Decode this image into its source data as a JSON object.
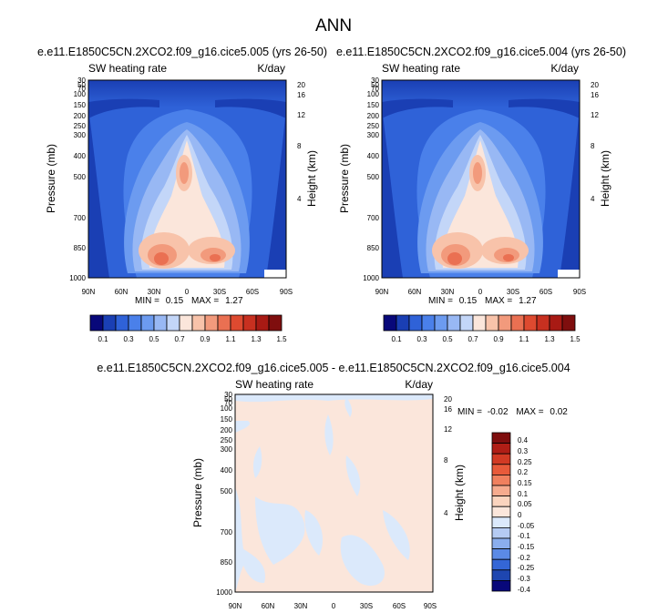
{
  "page_title": "ANN",
  "chart_data": [
    {
      "type": "heatmap",
      "panel": "left",
      "title": "e.e11.E1850C5CN.2XCO2.f09_g16.cice5.005 (yrs 26-50)",
      "variable": "SW heating rate",
      "units": "K/day",
      "xlabel": "",
      "ylabel": "Pressure (mb)",
      "ylabel_right": "Height (km)",
      "x_ticks": [
        "90N",
        "60N",
        "30N",
        "0",
        "30S",
        "60S",
        "90S"
      ],
      "y_ticks": [
        "30",
        "50",
        "70",
        "100",
        "150",
        "200",
        "250",
        "300",
        "400",
        "500",
        "700",
        "850",
        "1000"
      ],
      "y_ticks_right": [
        "20",
        "16",
        "12",
        "8",
        "4"
      ],
      "ylim": [
        1000,
        30
      ],
      "min_label": "MIN =",
      "min_value": "0.15",
      "max_label": "MAX =",
      "max_value": "1.27",
      "colorbar_labels": [
        "0.1",
        "0.3",
        "0.5",
        "0.7",
        "0.9",
        "1.1",
        "1.3",
        "1.5"
      ]
    },
    {
      "type": "heatmap",
      "panel": "right",
      "title": "e.e11.E1850C5CN.2XCO2.f09_g16.cice5.004 (yrs 26-50)",
      "variable": "SW heating rate",
      "units": "K/day",
      "xlabel": "",
      "ylabel": "Pressure (mb)",
      "ylabel_right": "Height (km)",
      "x_ticks": [
        "90N",
        "60N",
        "30N",
        "0",
        "30S",
        "60S",
        "90S"
      ],
      "y_ticks": [
        "30",
        "50",
        "70",
        "100",
        "150",
        "200",
        "250",
        "300",
        "400",
        "500",
        "700",
        "850",
        "1000"
      ],
      "y_ticks_right": [
        "20",
        "16",
        "12",
        "8",
        "4"
      ],
      "ylim": [
        1000,
        30
      ],
      "min_label": "MIN =",
      "min_value": "0.15",
      "max_label": "MAX =",
      "max_value": "1.27",
      "colorbar_labels": [
        "0.1",
        "0.3",
        "0.5",
        "0.7",
        "0.9",
        "1.1",
        "1.3",
        "1.5"
      ]
    },
    {
      "type": "heatmap",
      "panel": "difference",
      "title": "e.e11.E1850C5CN.2XCO2.f09_g16.cice5.005 - e.e11.E1850C5CN.2XCO2.f09_g16.cice5.004",
      "variable": "SW heating rate",
      "units": "K/day",
      "xlabel": "",
      "ylabel": "Pressure (mb)",
      "ylabel_right": "Height (km)",
      "x_ticks": [
        "90N",
        "60N",
        "30N",
        "0",
        "30S",
        "60S",
        "90S"
      ],
      "y_ticks": [
        "30",
        "50",
        "70",
        "100",
        "150",
        "200",
        "250",
        "300",
        "400",
        "500",
        "700",
        "850",
        "1000"
      ],
      "y_ticks_right": [
        "20",
        "16",
        "12",
        "8",
        "4"
      ],
      "ylim": [
        1000,
        30
      ],
      "min_label": "MIN =",
      "min_value": "-0.02",
      "max_label": "MAX =",
      "max_value": "0.02",
      "colorbar_labels": [
        "0.4",
        "0.3",
        "0.25",
        "0.2",
        "0.15",
        "0.1",
        "0.05",
        "0",
        "-0.05",
        "-0.1",
        "-0.15",
        "-0.2",
        "-0.25",
        "-0.3",
        "-0.4"
      ]
    }
  ],
  "colors": {
    "seq_colorbar": [
      "#08087a",
      "#1a3fb4",
      "#2f62d8",
      "#4a80ea",
      "#6c9bf0",
      "#98b8f4",
      "#c3d6f8",
      "#fbe6db",
      "#f8c3aa",
      "#f29a7c",
      "#ea7052",
      "#de4a30",
      "#c83020",
      "#a81a14",
      "#7f0e0e"
    ],
    "div_colorbar": [
      "#7f0e0e",
      "#b01e16",
      "#d23a24",
      "#e85a3a",
      "#f0805e",
      "#f6ab8e",
      "#fbd4be",
      "#fbe6db",
      "#dbe9fb",
      "#b5cbf3",
      "#8aaeee",
      "#5b8ae6",
      "#3466d6",
      "#1e46b0",
      "#08087a"
    ],
    "diff_pos": "#fbe6db",
    "diff_neg": "#dbe9fb"
  }
}
